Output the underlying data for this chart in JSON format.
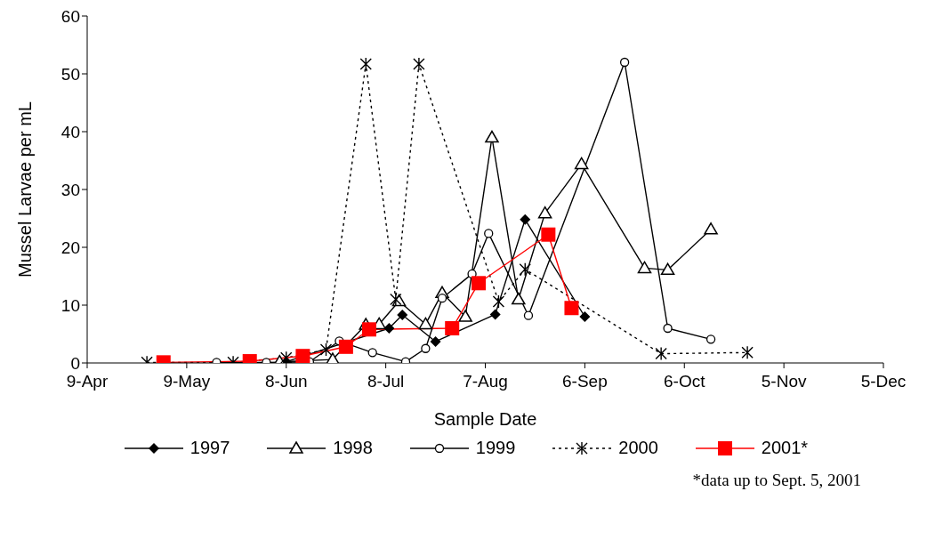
{
  "chart_data": {
    "type": "line",
    "xlabel": "Sample Date",
    "ylabel": "Mussel Larvae per mL",
    "xlim": [
      "--04-09",
      "--12-05"
    ],
    "xticks": [
      {
        "value": "--04-09",
        "label": "9-Apr"
      },
      {
        "value": "--05-09",
        "label": "9-May"
      },
      {
        "value": "--06-08",
        "label": "8-Jun"
      },
      {
        "value": "--07-08",
        "label": "8-Jul"
      },
      {
        "value": "--08-07",
        "label": "7-Aug"
      },
      {
        "value": "--09-06",
        "label": "6-Sep"
      },
      {
        "value": "--10-06",
        "label": "6-Oct"
      },
      {
        "value": "--11-05",
        "label": "5-Nov"
      },
      {
        "value": "--12-05",
        "label": "5-Dec"
      }
    ],
    "ylim": [
      0,
      60
    ],
    "yticks": [
      0,
      10,
      20,
      30,
      40,
      50,
      60
    ],
    "grid": false,
    "legend": "bottom",
    "series": [
      {
        "name": "1997",
        "color": "#000000",
        "marker": "diamond",
        "line_style": "solid",
        "x": [
          "--06-08",
          "--07-09",
          "--07-13",
          "--07-23",
          "--08-10",
          "--08-19",
          "--09-06"
        ],
        "values": [
          0.2,
          6,
          8.3,
          3.7,
          8.4,
          24.8,
          8
        ]
      },
      {
        "name": "1998",
        "color": "#000000",
        "marker": "triangle",
        "line_style": "solid",
        "x": [
          "--06-06",
          "--06-22",
          "--07-02",
          "--07-06",
          "--07-12",
          "--07-20",
          "--07-25",
          "--08-01",
          "--08-09",
          "--08-17",
          "--08-25",
          "--09-05",
          "--09-24",
          "--10-01",
          "--10-14"
        ],
        "values": [
          0.2,
          0.6,
          6.6,
          6.7,
          10.7,
          6.7,
          12.1,
          8,
          39,
          11,
          25.9,
          34.4,
          16.4,
          16.1,
          23.1
        ]
      },
      {
        "name": "1999",
        "color": "#000000",
        "marker": "circle",
        "line_style": "solid",
        "x": [
          "--05-18",
          "--06-02",
          "--06-15",
          "--06-24",
          "--07-04",
          "--07-14",
          "--07-20",
          "--07-25",
          "--08-03",
          "--08-08",
          "--08-20",
          "--09-18",
          "--10-01",
          "--10-14"
        ],
        "values": [
          0.1,
          0.1,
          0.2,
          3.8,
          1.8,
          0.2,
          2.5,
          11.2,
          15.4,
          22.4,
          8.2,
          52,
          6,
          4.1
        ]
      },
      {
        "name": "2000",
        "color": "#000000",
        "marker": "cross",
        "line_style": "dotted",
        "x": [
          "--04-27",
          "--05-23",
          "--06-08",
          "--06-20",
          "--07-02",
          "--07-11",
          "--07-18",
          "--08-11",
          "--08-19",
          "--09-29",
          "--10-25"
        ],
        "values": [
          0.1,
          0.1,
          0.9,
          2.3,
          51.7,
          11,
          51.7,
          10.6,
          16.2,
          1.6,
          1.8
        ]
      },
      {
        "name": "2001*",
        "color": "#ff0000",
        "marker": "square",
        "line_style": "solid",
        "x": [
          "--05-02",
          "--05-28",
          "--06-13",
          "--06-26",
          "--07-03",
          "--07-28",
          "--08-05",
          "--08-26",
          "--09-02"
        ],
        "values": [
          0.1,
          0.3,
          1.2,
          2.8,
          5.8,
          6,
          13.8,
          22.2,
          9.5
        ]
      }
    ],
    "annotations": [
      "*data up to Sept. 5, 2001"
    ]
  }
}
